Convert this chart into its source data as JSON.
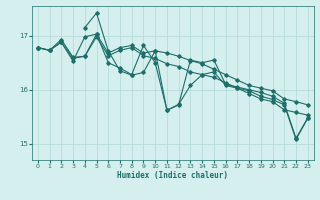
{
  "title": "",
  "xlabel": "Humidex (Indice chaleur)",
  "bg_color": "#d4efed",
  "grid_color": "#b8dbd9",
  "line_color": "#1e6e6a",
  "xlim": [
    -0.5,
    23.5
  ],
  "ylim": [
    14.7,
    17.55
  ],
  "yticks": [
    15,
    16,
    17
  ],
  "xticks": [
    0,
    1,
    2,
    3,
    4,
    5,
    6,
    7,
    8,
    9,
    10,
    11,
    12,
    13,
    14,
    15,
    16,
    17,
    18,
    19,
    20,
    21,
    22,
    23
  ],
  "series1_x": [
    0,
    1,
    2,
    3,
    4,
    5,
    6,
    7,
    8,
    9,
    10,
    11,
    12,
    13,
    14,
    15,
    16,
    17,
    18,
    19,
    20,
    21,
    22,
    23
  ],
  "series1_y": [
    16.78,
    16.73,
    16.93,
    16.6,
    16.62,
    17.03,
    16.68,
    16.78,
    16.82,
    16.68,
    16.72,
    16.68,
    16.62,
    16.54,
    16.48,
    16.38,
    16.28,
    16.18,
    16.08,
    16.03,
    15.98,
    15.83,
    15.78,
    15.72
  ],
  "series2_x": [
    0,
    1,
    2,
    3,
    4,
    5,
    6,
    7,
    8,
    9,
    10,
    11,
    12,
    13,
    14,
    15,
    16,
    17,
    18,
    19,
    20,
    21,
    22,
    23
  ],
  "series2_y": [
    16.78,
    16.73,
    16.88,
    16.53,
    16.98,
    17.03,
    16.5,
    16.4,
    16.28,
    16.82,
    16.5,
    15.62,
    15.72,
    16.55,
    16.5,
    16.55,
    16.1,
    16.05,
    16.0,
    15.95,
    15.88,
    15.75,
    15.1,
    15.48
  ],
  "series3_x": [
    0,
    1,
    2,
    3,
    4,
    5,
    6,
    7,
    8,
    9,
    10,
    11,
    12,
    13,
    14,
    15,
    16,
    17,
    18,
    19,
    20,
    21,
    22,
    23
  ],
  "series3_y": [
    16.78,
    16.73,
    16.88,
    16.58,
    16.62,
    16.98,
    16.63,
    16.73,
    16.78,
    16.63,
    16.58,
    16.48,
    16.43,
    16.33,
    16.28,
    16.23,
    16.13,
    16.03,
    15.93,
    15.83,
    15.78,
    15.63,
    15.58,
    15.53
  ],
  "series4_x": [
    4,
    5,
    6,
    7,
    8,
    9,
    10,
    11,
    12,
    13,
    14,
    15,
    16,
    17,
    18,
    19,
    20,
    21,
    22,
    23
  ],
  "series4_y": [
    17.15,
    17.42,
    16.72,
    16.35,
    16.27,
    16.32,
    16.72,
    15.62,
    15.73,
    16.08,
    16.28,
    16.33,
    16.08,
    16.03,
    15.98,
    15.88,
    15.82,
    15.72,
    15.08,
    15.47
  ]
}
